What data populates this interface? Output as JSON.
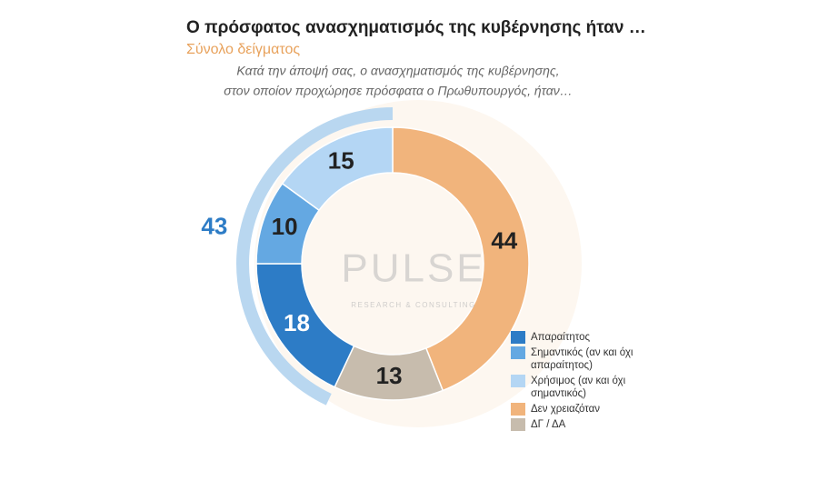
{
  "chart_data": {
    "type": "donut",
    "title": "Ο πρόσφατος ανασχηματισμός της κυβέρνησης ήταν …",
    "subtitle": "Σύνολο δείγματος",
    "question": [
      "Κατά την άποψή σας, ο ανασχηματισμός της κυβέρνησης,",
      "στον οποίον προχώρησε πρόσφατα ο Πρωθυπουργός, ήταν…"
    ],
    "categories": [
      "Απαραίτητος",
      "Σημαντικός (αν και όχι απαραίτητος)",
      "Χρήσιμος (αν και όχι σημαντικός)",
      "Δεν χρειαζόταν",
      "ΔΓ / ΔΑ"
    ],
    "values": [
      18,
      10,
      15,
      44,
      13
    ],
    "colors": [
      "#2d7cc6",
      "#64a8e2",
      "#b4d6f4",
      "#f1b47c",
      "#c7bcad"
    ],
    "group_total": 43,
    "group_color": "#b9d7f0",
    "watermark": {
      "name": "PULSE",
      "tagline": "RESEARCH & CONSULTING"
    }
  }
}
